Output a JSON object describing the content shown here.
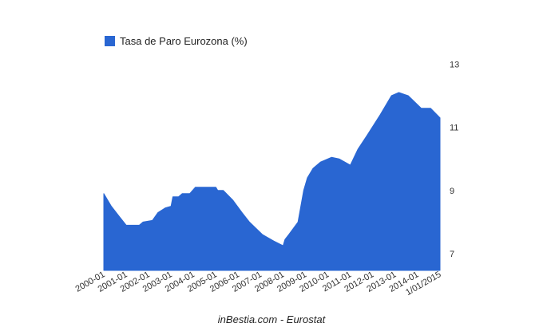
{
  "chart_data": {
    "type": "area",
    "title": "",
    "xlabel": "",
    "ylabel": "",
    "legend": {
      "position": "top-left",
      "entries": [
        "Tasa de Paro Eurozona (%)"
      ]
    },
    "ylim": [
      6.5,
      13
    ],
    "y_ticks": [
      "7",
      "9",
      "11",
      "13"
    ],
    "y_axis_side": "right",
    "grid": false,
    "x_tick_labels": [
      "2000-01",
      "2001-01",
      "2002-01",
      "2003-01",
      "2004-01",
      "2005-01",
      "2006-01",
      "2007-01",
      "2008-01",
      "2009-01",
      "2010-01",
      "2011-01",
      "2012-01",
      "2013-01",
      "2014-01",
      "1/01/2015"
    ],
    "series": [
      {
        "name": "Tasa de Paro Eurozona (%)",
        "color": "#2966d2",
        "x": [
          "2000-01",
          "2000-05",
          "2000-09",
          "2001-01",
          "2001-08",
          "2001-10",
          "2002-03",
          "2002-06",
          "2002-10",
          "2003-01",
          "2003-02",
          "2003-05",
          "2003-07",
          "2003-11",
          "2004-02",
          "2005-01",
          "2005-02",
          "2005-05",
          "2005-10",
          "2006-03",
          "2006-07",
          "2007-02",
          "2007-08",
          "2008-01",
          "2008-02",
          "2008-04",
          "2008-09",
          "2008-12",
          "2009-02",
          "2009-05",
          "2009-09",
          "2010-03",
          "2010-07",
          "2011-01",
          "2011-05",
          "2011-10",
          "2012-05",
          "2012-11",
          "2013-03",
          "2013-08",
          "2014-03",
          "2014-08",
          "2015-01"
        ],
        "values": [
          8.9,
          8.5,
          8.2,
          7.9,
          7.9,
          8.0,
          8.05,
          8.3,
          8.45,
          8.5,
          8.8,
          8.8,
          8.9,
          8.9,
          9.1,
          9.1,
          9.0,
          9.0,
          8.7,
          8.3,
          8.0,
          7.6,
          7.4,
          7.25,
          7.45,
          7.6,
          8.0,
          9.0,
          9.4,
          9.7,
          9.9,
          10.05,
          10.0,
          9.8,
          10.3,
          10.75,
          11.4,
          12.0,
          12.1,
          12.0,
          11.6,
          11.6,
          11.3
        ]
      }
    ]
  },
  "legend_label": "Tasa de Paro Eurozona (%)",
  "footer": "inBestia.com - Eurostat"
}
